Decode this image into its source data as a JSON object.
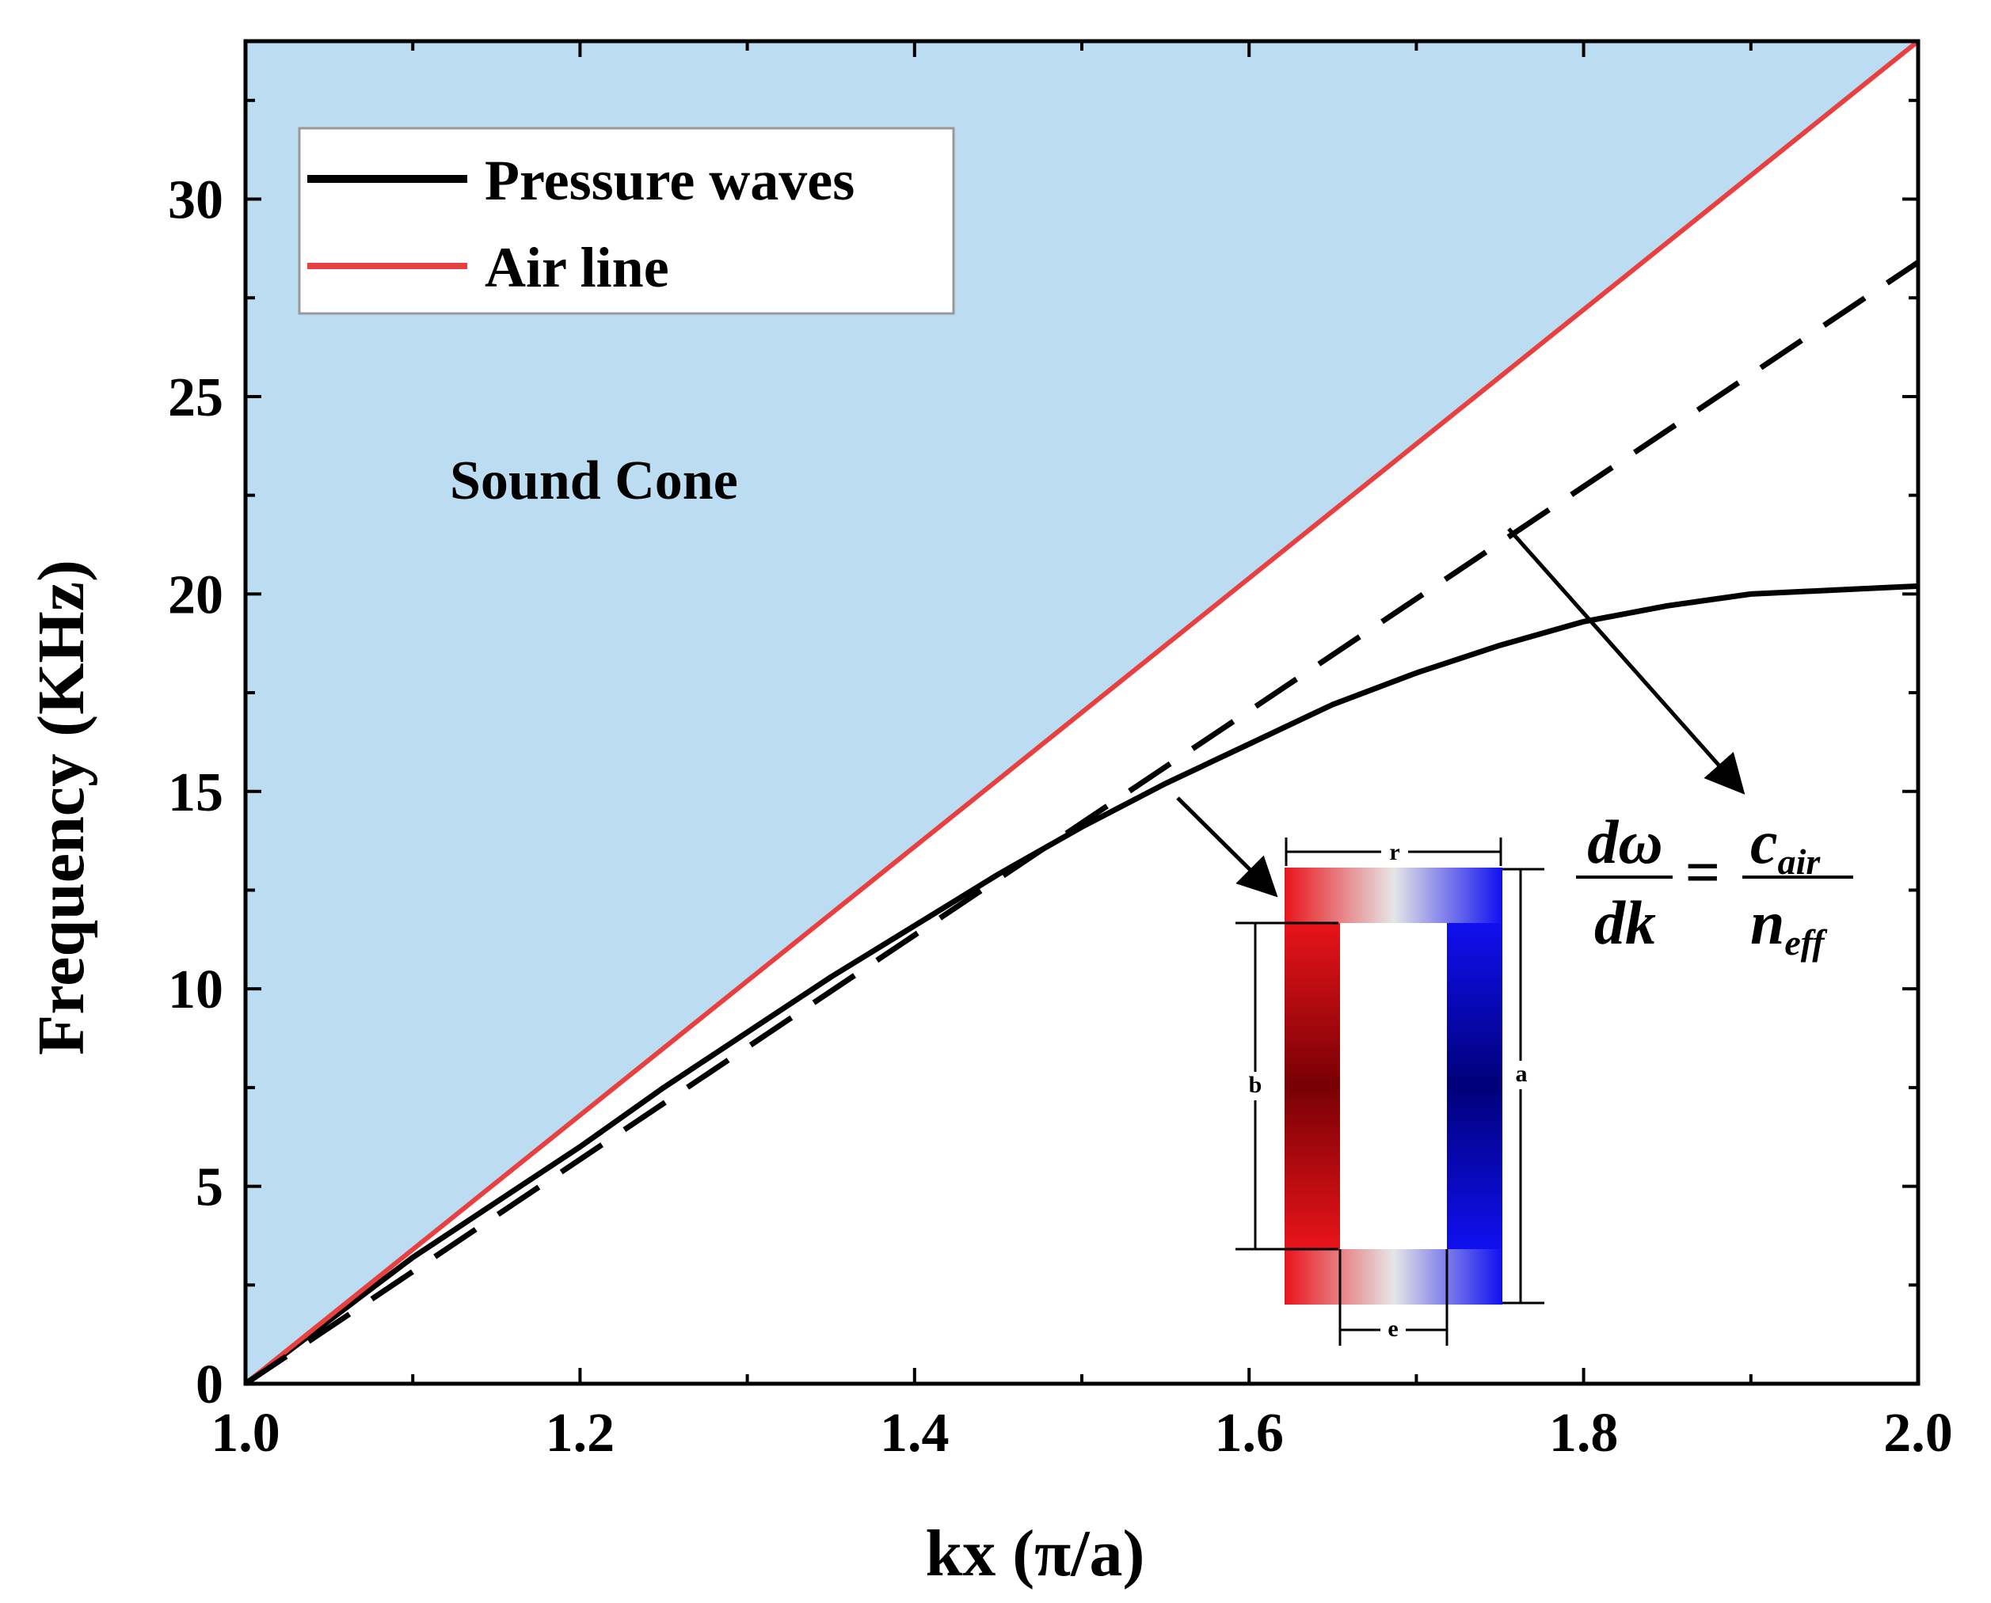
{
  "chart_data": {
    "type": "line",
    "xlabel": "kx (π/a)",
    "ylabel": "Frequency (KHz)",
    "xlim": [
      1.0,
      2.0
    ],
    "ylim": [
      0,
      34
    ],
    "xticks": [
      "1.0",
      "1.2",
      "1.4",
      "1.6",
      "1.8",
      "2.0"
    ],
    "xtick_values": [
      1.0,
      1.2,
      1.4,
      1.6,
      1.8,
      2.0
    ],
    "yticks": [
      "0",
      "5",
      "10",
      "15",
      "20",
      "25",
      "30"
    ],
    "ytick_values": [
      0,
      5,
      10,
      15,
      20,
      25,
      30
    ],
    "grid": false,
    "legend_position": "top-left",
    "series": [
      {
        "name": "Pressure waves",
        "color": "#000000",
        "style": "solid",
        "x": [
          1.0,
          1.05,
          1.1,
          1.15,
          1.2,
          1.25,
          1.3,
          1.35,
          1.4,
          1.45,
          1.5,
          1.55,
          1.6,
          1.65,
          1.7,
          1.75,
          1.8,
          1.85,
          1.9,
          1.95,
          2.0
        ],
        "values": [
          0.0,
          1.6,
          3.2,
          4.6,
          6.0,
          7.5,
          8.9,
          10.3,
          11.6,
          12.9,
          14.1,
          15.2,
          16.2,
          17.2,
          18.0,
          18.7,
          19.3,
          19.7,
          20.0,
          20.1,
          20.2
        ]
      },
      {
        "name": "Air line",
        "color": "#e84040",
        "style": "solid",
        "x": [
          1.0,
          2.0
        ],
        "values": [
          0.0,
          34.0
        ]
      },
      {
        "name": "",
        "color": "#000000",
        "style": "dashed",
        "x": [
          1.0,
          2.0
        ],
        "values": [
          0.0,
          28.4
        ]
      }
    ],
    "sound_cone": {
      "label": "Sound Cone",
      "color": "#bcdcf2"
    },
    "legend": [
      {
        "label": "Pressure waves",
        "color": "#000000"
      },
      {
        "label": "Air line",
        "color": "#e84040"
      }
    ],
    "formula": {
      "lhs_numerator": "dω",
      "lhs_denominator": "dk",
      "equals": "=",
      "rhs_numerator": "c",
      "rhs_numerator_sub": "air",
      "rhs_denominator": "n",
      "rhs_denominator_sub": "eff"
    },
    "inset": {
      "labels": {
        "r": "r",
        "a": "a",
        "b": "b",
        "e": "e"
      },
      "left_color": "#e8141a",
      "left_dark_color": "#780004",
      "right_color": "#1010f0",
      "right_dark_color": "#00007a",
      "mid_color": "#e6e6e6"
    }
  }
}
